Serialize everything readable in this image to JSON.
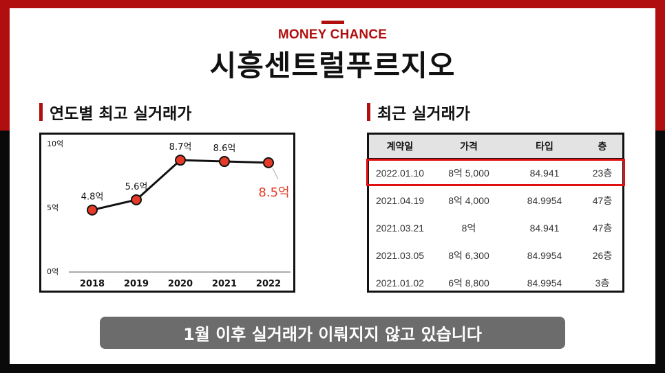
{
  "brand": "MONEY CHANCE",
  "title": "시흥센트럴푸르지오",
  "chart_section_title": "연도별 최고 실거래가",
  "table_section_title": "최근 실거래가",
  "chart_data": {
    "type": "line",
    "x": [
      "2018",
      "2019",
      "2020",
      "2021",
      "2022"
    ],
    "values": [
      4.8,
      5.6,
      8.7,
      8.6,
      8.5
    ],
    "data_labels": [
      "4.8억",
      "5.6억",
      "8.7억",
      "8.6억",
      "8.5억"
    ],
    "y_ticks": [
      "0억",
      "5억",
      "10억"
    ],
    "ylim": [
      0,
      10
    ],
    "grid": false,
    "highlight_index": 4,
    "highlight_color": "#e53a27",
    "point_color": "#e53a27",
    "line_color": "#111111"
  },
  "table": {
    "headers": [
      "계약일",
      "가격",
      "타입",
      "층"
    ],
    "rows": [
      [
        "2022.01.10",
        "8억 5,000",
        "84.941",
        "23층"
      ],
      [
        "2021.04.19",
        "8억 4,000",
        "84.9954",
        "47층"
      ],
      [
        "2021.03.21",
        "8억",
        "84.941",
        "47층"
      ],
      [
        "2021.03.05",
        "8억 6,300",
        "84.9954",
        "26층"
      ],
      [
        "2021.01.02",
        "6억 8,800",
        "84.9954",
        "3층"
      ]
    ],
    "highlight_color": "#e01010"
  },
  "banner": "1월 이후 실거래가 이뤄지지 않고 있습니다"
}
